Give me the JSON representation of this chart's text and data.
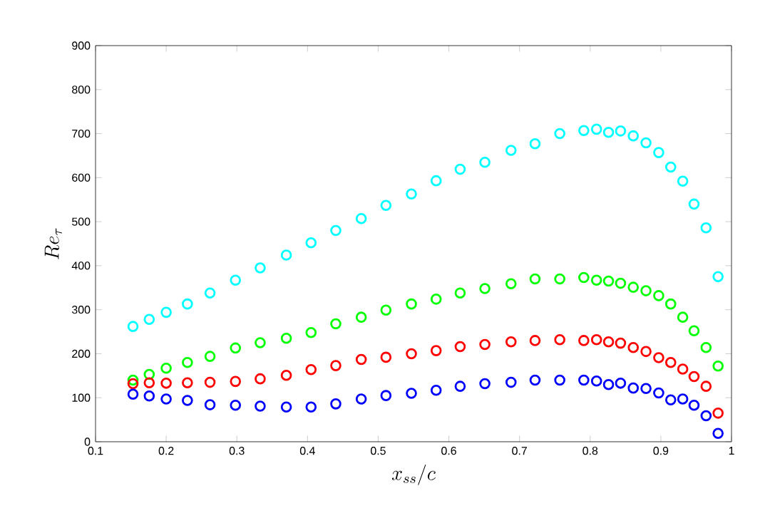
{
  "chart_data": {
    "type": "scatter",
    "xlabel": "x_{ss}/c",
    "ylabel": "Re_\\tau",
    "marker": "circle",
    "x": [
      0.153,
      0.176,
      0.2,
      0.23,
      0.262,
      0.298,
      0.333,
      0.37,
      0.405,
      0.44,
      0.476,
      0.511,
      0.547,
      0.582,
      0.616,
      0.651,
      0.688,
      0.722,
      0.757,
      0.791,
      0.809,
      0.826,
      0.843,
      0.861,
      0.879,
      0.897,
      0.914,
      0.931,
      0.947,
      0.964,
      0.981
    ],
    "xlim": [
      0.1,
      1
    ],
    "xticks": [
      0.1,
      0.2,
      0.3,
      0.4,
      0.5,
      0.6,
      0.7,
      0.8,
      0.9,
      {
        "value": 1,
        "label": "1"
      }
    ],
    "ylim": [
      0,
      900
    ],
    "yticks": [
      0,
      100,
      200,
      300,
      400,
      500,
      600,
      700,
      800,
      900
    ],
    "series": [
      {
        "color": "#00ffff",
        "values": [
          262,
          278,
          294,
          313,
          338,
          367,
          395,
          424,
          452,
          480,
          507,
          537,
          563,
          593,
          619,
          635,
          662,
          677,
          700,
          707,
          710,
          703,
          706,
          695,
          679,
          657,
          624,
          592,
          540,
          486,
          375
        ]
      },
      {
        "color": "#00ff00",
        "values": [
          140,
          153,
          167,
          180,
          194,
          213,
          225,
          235,
          248,
          268,
          283,
          299,
          313,
          324,
          338,
          348,
          359,
          370,
          370,
          373,
          367,
          365,
          360,
          351,
          343,
          332,
          313,
          283,
          252,
          214,
          172
        ]
      },
      {
        "color": "#ff0000",
        "values": [
          132,
          134,
          133,
          134,
          135,
          137,
          143,
          151,
          164,
          173,
          187,
          192,
          200,
          207,
          216,
          221,
          227,
          230,
          232,
          230,
          232,
          227,
          224,
          214,
          205,
          191,
          180,
          165,
          148,
          126,
          65
        ]
      },
      {
        "color": "#0000ff",
        "values": [
          108,
          104,
          97,
          94,
          84,
          83,
          81,
          79,
          79,
          86,
          97,
          105,
          110,
          117,
          126,
          132,
          135,
          140,
          140,
          140,
          138,
          130,
          133,
          122,
          121,
          111,
          95,
          97,
          83,
          59,
          19
        ]
      }
    ]
  }
}
